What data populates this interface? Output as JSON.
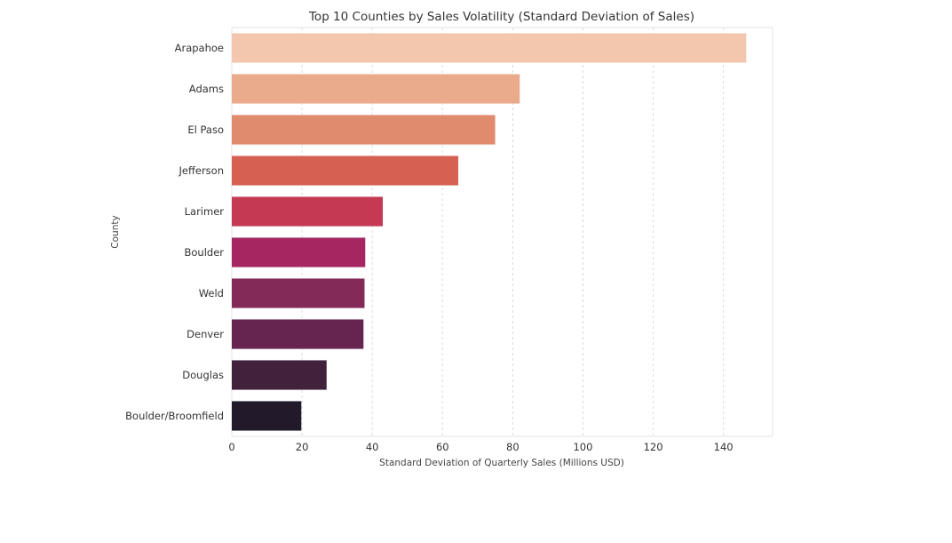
{
  "chart_data": {
    "type": "bar",
    "orientation": "horizontal",
    "title": "Top 10 Counties by Sales Volatility (Standard Deviation of Sales)",
    "xlabel": "Standard Deviation of Quarterly Sales (Millions USD)",
    "ylabel": "County",
    "xlim": [
      0,
      154
    ],
    "xticks": [
      0,
      20,
      40,
      60,
      80,
      100,
      120,
      140
    ],
    "grid": true,
    "categories": [
      "Arapahoe",
      "Adams",
      "El Paso",
      "Jefferson",
      "Larimer",
      "Boulder",
      "Weld",
      "Denver",
      "Douglas",
      "Boulder/Broomfield"
    ],
    "values": [
      146.5,
      82,
      75,
      64.5,
      43,
      38,
      37.8,
      37.5,
      27,
      19.8
    ],
    "colors": [
      "#f2c7ae",
      "#eaab8c",
      "#e08b6e",
      "#d66052",
      "#c33a52",
      "#a52660",
      "#832a58",
      "#652550",
      "#42213d",
      "#221a2b"
    ]
  }
}
